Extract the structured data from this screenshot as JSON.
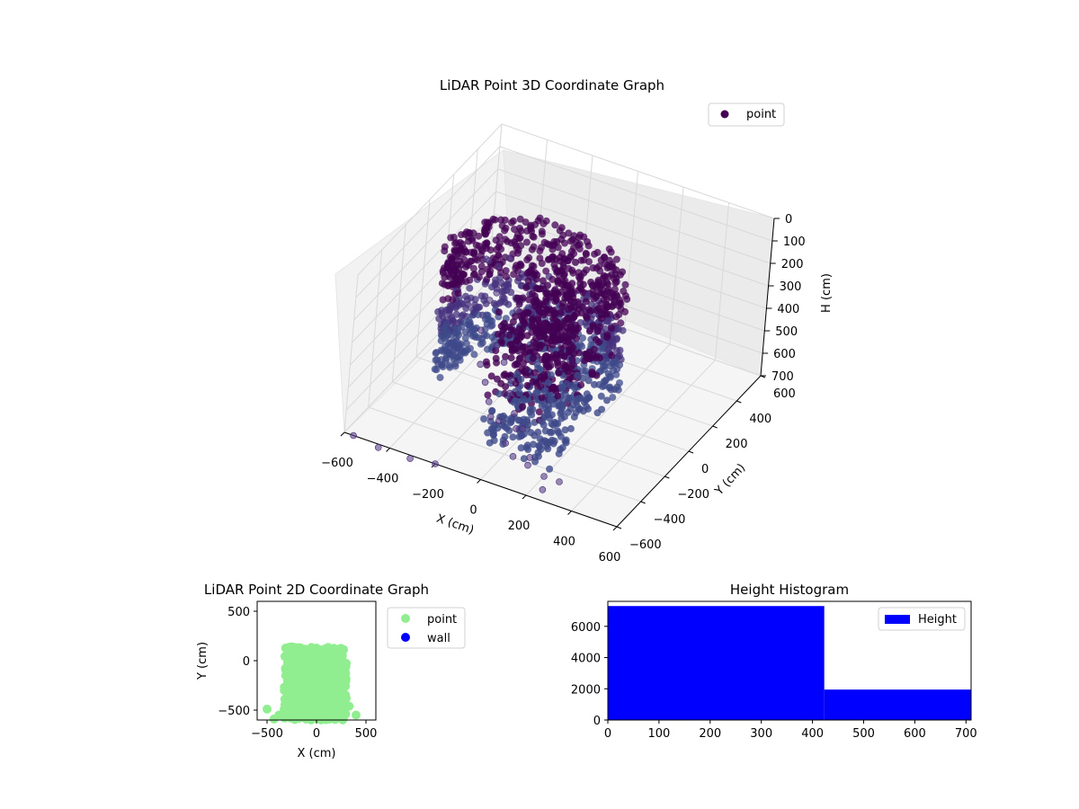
{
  "chart_data": [
    {
      "type": "scatter",
      "title": "LiDAR Point 3D Coordinate Graph",
      "xlabel": "X (cm)",
      "ylabel": "Y (cm)",
      "zlabel": "H (cm)",
      "xlim": [
        -600,
        600
      ],
      "ylim": [
        -600,
        600
      ],
      "zlim": [
        0,
        700
      ],
      "z_inverted": true,
      "x_ticks": [
        "−600",
        "−400",
        "−200",
        "0",
        "200",
        "400",
        "600"
      ],
      "y_ticks": [
        "−600",
        "−400",
        "−200",
        "0",
        "200",
        "400",
        "600"
      ],
      "z_ticks": [
        "0",
        "100",
        "200",
        "300",
        "400",
        "500",
        "600",
        "700"
      ],
      "grid": true,
      "legend": {
        "position": "top-right",
        "entries": [
          {
            "label": "point",
            "color": "#440154"
          }
        ]
      },
      "colormap": "viridis",
      "series": [
        {
          "name": "point",
          "color": "#440154",
          "description_points": "dense curved wall of points from X≈-350..250, Y≈-550..150, H≈0..600 plus scattered outliers"
        }
      ],
      "outliers": [
        [
          -560,
          480,
          520
        ],
        [
          -520,
          420,
          480
        ],
        [
          -480,
          520,
          510
        ],
        [
          -460,
          380,
          460
        ],
        [
          -420,
          300,
          520
        ],
        [
          -400,
          200,
          490
        ],
        [
          -380,
          100,
          560
        ],
        [
          -350,
          350,
          600
        ],
        [
          -330,
          150,
          640
        ],
        [
          -300,
          -50,
          600
        ],
        [
          -260,
          80,
          650
        ],
        [
          -240,
          -120,
          620
        ],
        [
          -200,
          30,
          680
        ],
        [
          -180,
          -200,
          640
        ],
        [
          -150,
          -80,
          660
        ],
        [
          -120,
          -300,
          630
        ],
        [
          -90,
          -150,
          690
        ],
        [
          -60,
          -350,
          600
        ],
        [
          -30,
          -250,
          680
        ],
        [
          0,
          -400,
          650
        ],
        [
          30,
          -320,
          620
        ],
        [
          60,
          -450,
          660
        ],
        [
          100,
          -380,
          690
        ],
        [
          150,
          -500,
          640
        ],
        [
          200,
          -450,
          700
        ],
        [
          250,
          -560,
          680
        ],
        [
          300,
          -520,
          650
        ],
        [
          -560,
          -600,
          700
        ],
        [
          -440,
          -620,
          700
        ],
        [
          -300,
          -620,
          700
        ],
        [
          -200,
          -600,
          700
        ]
      ]
    },
    {
      "type": "scatter",
      "title": "LiDAR Point 2D Coordinate Graph",
      "xlabel": "X (cm)",
      "ylabel": "Y (cm)",
      "xlim": [
        -600,
        600
      ],
      "ylim": [
        -600,
        600
      ],
      "x_ticks": [
        "−500",
        "0",
        "500"
      ],
      "y_ticks": [
        "−500",
        "0",
        "500"
      ],
      "legend": {
        "position": "outside-right",
        "entries": [
          {
            "label": "point",
            "color": "#90ee90"
          },
          {
            "label": "wall",
            "color": "#0000ff"
          }
        ]
      },
      "series": [
        {
          "name": "point",
          "color": "#90ee90",
          "region": {
            "x": [
              -330,
              300
            ],
            "y": [
              -600,
              140
            ]
          },
          "sample_points": [
            [
              -500,
              -490
            ],
            [
              -430,
              -590
            ],
            [
              -380,
              -550
            ],
            [
              -260,
              -580
            ],
            [
              200,
              -580
            ],
            [
              250,
              -560
            ],
            [
              400,
              -550
            ],
            [
              330,
              -460
            ],
            [
              -300,
              -400
            ],
            [
              300,
              -380
            ]
          ]
        },
        {
          "name": "wall",
          "color": "#0000ff",
          "values": []
        }
      ]
    },
    {
      "type": "bar",
      "title": "Height Histogram",
      "xlabel": "",
      "ylabel": "",
      "xlim": [
        0,
        710
      ],
      "ylim": [
        0,
        7600
      ],
      "x_ticks": [
        "0",
        "100",
        "200",
        "300",
        "400",
        "500",
        "600",
        "700"
      ],
      "y_ticks": [
        "0",
        "2000",
        "4000",
        "6000"
      ],
      "legend": {
        "position": "top-right",
        "entries": [
          {
            "label": "Height",
            "color": "#0000ff"
          }
        ]
      },
      "bins": [
        {
          "x0": 0,
          "x1": 423,
          "count": 7300
        },
        {
          "x0": 423,
          "x1": 710,
          "count": 1950
        }
      ],
      "color": "#0000ff"
    }
  ]
}
